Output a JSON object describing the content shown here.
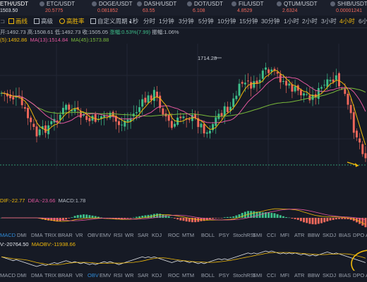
{
  "tickers": [
    {
      "name": "ETH/USDT",
      "price": "1503.50",
      "active": true
    },
    {
      "name": "ETC/USDT",
      "price": "20.5775"
    },
    {
      "name": "DOGE/USDT",
      "price": "0.081852"
    },
    {
      "name": "DASH/USDT",
      "price": "63.55"
    },
    {
      "name": "DOT/USDT",
      "price": "6.108"
    },
    {
      "name": "FIL/USDT",
      "price": "4.8529"
    },
    {
      "name": "QTUM/USDT",
      "price": "2.6324"
    },
    {
      "name": "SHIB/USDT",
      "price": "0.00001241"
    }
  ],
  "toolbar": {
    "draw_label": "画线",
    "advanced_label": "高级",
    "winrate_label": "高胜率",
    "custom_period_label": "自定义周期",
    "periods": [
      "1秒",
      "分时",
      "1分钟",
      "3分钟",
      "5分钟",
      "10分钟",
      "15分钟",
      "30分钟",
      "1小时",
      "2小时",
      "3小时",
      "4小时",
      "6小"
    ],
    "active_period": "4小时"
  },
  "ohlc": {
    "open": "开:1492.73",
    "high": "高:1508.61",
    "low": "低:1492.73",
    "close": "收:1505.05",
    "change": "涨幅:0.53%(7.99)",
    "amplitude": "振幅:1.06%"
  },
  "ma": {
    "ma5": "(5):1492.86",
    "ma13": "MA(13):1514.84",
    "ma45": "MA(45):1573.88"
  },
  "high_marker": "1714.28",
  "macd_info": {
    "dif": "DIF:-22.77",
    "dea": "DEA:-23.66",
    "macd": "MACD:1.78"
  },
  "indicator_tabs": [
    "MACD",
    "DMI",
    "DMA",
    "TRIX",
    "BRAR",
    "VR",
    "OBV",
    "EMV",
    "RSI",
    "WR",
    "SAR",
    "KDJ",
    "ROC",
    "MTM",
    "BOLL",
    "PSY",
    "StochRSI",
    "SMI",
    "CCI",
    "MFI",
    "ATR",
    "BBW",
    "SKDJ",
    "BIAS",
    "DPO",
    "A"
  ],
  "active_indicator_top": "MACD",
  "obv_info": {
    "obv": "V:-20764.50",
    "maobv": "MAOBV:-11938.66"
  },
  "indicator_tabs_bottom": [
    "MACD",
    "DMI",
    "DMA",
    "TRIX",
    "BRAR",
    "VR",
    "OBV",
    "EMV",
    "RSI",
    "WR",
    "SAR",
    "KDJ",
    "ROC",
    "MTM",
    "BOLL",
    "PSY",
    "StochRSI",
    "SMI",
    "CCI",
    "MFI",
    "ATR",
    "BBW",
    "SKDJ",
    "BIAS",
    "DPO",
    "A"
  ],
  "active_indicator_bottom": "OBV",
  "colors": {
    "up": "#3dbf8a",
    "down": "#f0685b",
    "ma5": "#f0b90b",
    "ma13": "#e2579e",
    "ma45": "#79b93a",
    "highlight_circle": "#f0b90b",
    "active_blue": "#2f8bd8"
  },
  "icons": {
    "draw": "pencil-icon",
    "advanced": "layout-icon",
    "winrate": "target-icon",
    "custom_period": "grid-icon"
  }
}
